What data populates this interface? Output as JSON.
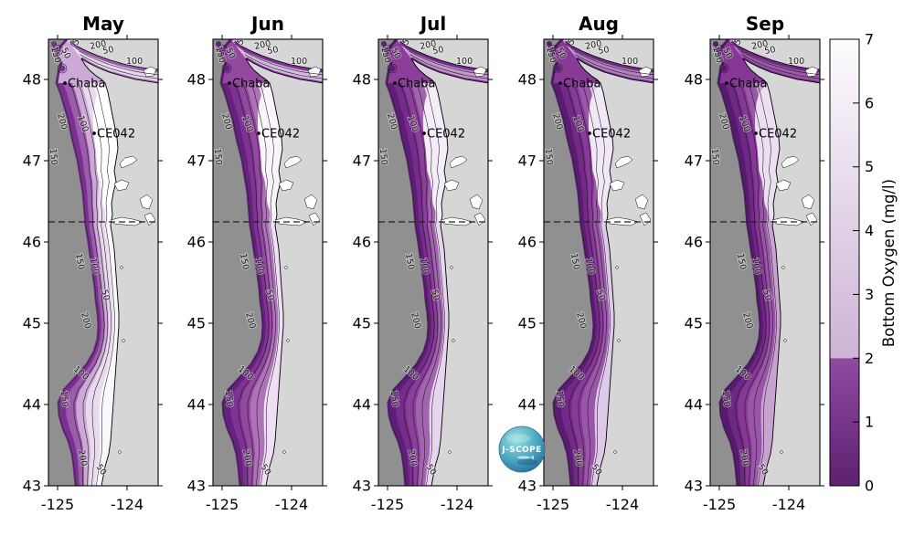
{
  "figure": {
    "background": "#ffffff",
    "panels": [
      {
        "title": "May"
      },
      {
        "title": "Jun"
      },
      {
        "title": "Jul"
      },
      {
        "title": "Aug"
      },
      {
        "title": "Sep"
      }
    ],
    "y_tick_labels": [
      "48",
      "47",
      "46",
      "45",
      "44",
      "43"
    ],
    "x_tick_labels": [
      "-125",
      "-124"
    ],
    "stations": [
      {
        "name": "Chaba"
      },
      {
        "name": "CE042"
      }
    ],
    "contour_labels": [
      "50",
      "100",
      "150",
      "200",
      "500"
    ],
    "colorbar": {
      "label": "Bottom Oxygen (mg/l)",
      "tick_labels": [
        "0",
        "1",
        "2",
        "3",
        "4",
        "5",
        "6",
        "7"
      ]
    },
    "logo_text": "J-SCOPE"
  },
  "chart_data": {
    "type": "heatmap",
    "subtype": "multi-panel contoured coastal map series of modeled bottom oxygen",
    "months": [
      "May",
      "Jun",
      "Jul",
      "Aug",
      "Sep"
    ],
    "variable": "Bottom Oxygen (mg/l)",
    "value_range": [
      0,
      7
    ],
    "colorbar_ticks": [
      0,
      1,
      2,
      3,
      4,
      5,
      6,
      7
    ],
    "hypoxia_threshold_mgl": 2,
    "lat_ticks": [
      48,
      47,
      46,
      45,
      44,
      43
    ],
    "lon_ticks": [
      -125,
      -124
    ],
    "lat_range_shown": [
      43,
      48.5
    ],
    "depth_contours_m": [
      50,
      100,
      150,
      200,
      500
    ],
    "dashed_line_lat": 46.25,
    "stations": [
      {
        "name": "Chaba",
        "approx_lon_lat": [
          -124.9,
          48.0
        ]
      },
      {
        "name": "CE042",
        "approx_lon_lat": [
          -124.5,
          47.3
        ]
      }
    ],
    "colormap": {
      "below_threshold": [
        "#5e2071",
        "#8f4ba0"
      ],
      "above_threshold": [
        "#cdb3d6",
        "#fdfcfe"
      ],
      "land": "#d6d6d6",
      "masked_deep_ocean": "#909090"
    },
    "month_palettes": {
      "May": {
        "core": "#ffffff",
        "inner": "#fbf8fd",
        "mid": "#e9daee",
        "outer": "#cca9d6",
        "slope": "#9a5cab",
        "rim": "#7a3090",
        "strait": "#e6d6ec"
      },
      "Jun": {
        "core": "#f9f4fb",
        "inner": "#eedff3",
        "mid": "#ad72b8",
        "outer": "#92499f",
        "slope": "#7e3392",
        "rim": "#662080",
        "strait": "#d3b9de"
      },
      "Jul": {
        "core": "#f4ecf7",
        "inner": "#e7d4ee",
        "mid": "#a263af",
        "outer": "#8b3f9a",
        "slope": "#762c8b",
        "rim": "#601c79",
        "strait": "#bf97c9"
      },
      "Aug": {
        "core": "#f1e7f5",
        "inner": "#dfc9e8",
        "mid": "#9a56a8",
        "outer": "#873a96",
        "slope": "#722a86",
        "rim": "#5b1b74",
        "strait": "#b181bf"
      },
      "Sep": {
        "core": "#ecdff2",
        "inner": "#c8a3d2",
        "mid": "#9a57a8",
        "outer": "#873897",
        "slope": "#6f2784",
        "rim": "#581a70",
        "strait": "#9b58a9"
      }
    },
    "trend": "Purple (low, <2 mg/l hypoxic) bottom-oxygen area along the Washington-Oregon shelf expands from May through Sep; white/light shelf water in May becomes nearly fully purple by Sep"
  }
}
